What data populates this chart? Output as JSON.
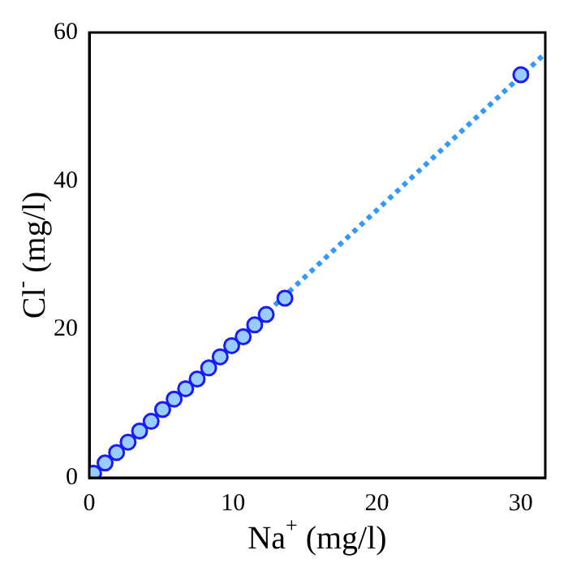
{
  "chart_data": {
    "type": "scatter",
    "xlabel": "Na$^{+}$ (mg/l)",
    "ylabel": "Cl$^{-}$ (mg/l)",
    "xlim": [
      0,
      31.7
    ],
    "ylim": [
      0,
      60
    ],
    "xticks": [
      0,
      10,
      20,
      30
    ],
    "yticks": [
      0,
      20,
      40,
      60
    ],
    "grid": false,
    "legend": false,
    "series": [
      {
        "type": "line",
        "color": "#3399ff",
        "line_style": "dotted",
        "x": [
          0,
          31.7
        ],
        "values": [
          0,
          57.2
        ]
      },
      {
        "color": "#99ccff",
        "marker": "circle",
        "x": [
          0.3,
          1.1,
          1.9,
          2.7,
          3.5,
          4.3,
          5.1,
          5.9,
          6.7,
          7.5,
          8.3,
          9.1,
          9.9,
          10.7,
          11.5,
          12.3,
          13.6,
          30.0
        ],
        "values": [
          0.6,
          2.0,
          3.4,
          4.8,
          6.3,
          7.6,
          9.2,
          10.6,
          12.0,
          13.3,
          14.8,
          16.3,
          17.8,
          19.0,
          20.6,
          22.0,
          24.2,
          54.3
        ]
      }
    ]
  }
}
